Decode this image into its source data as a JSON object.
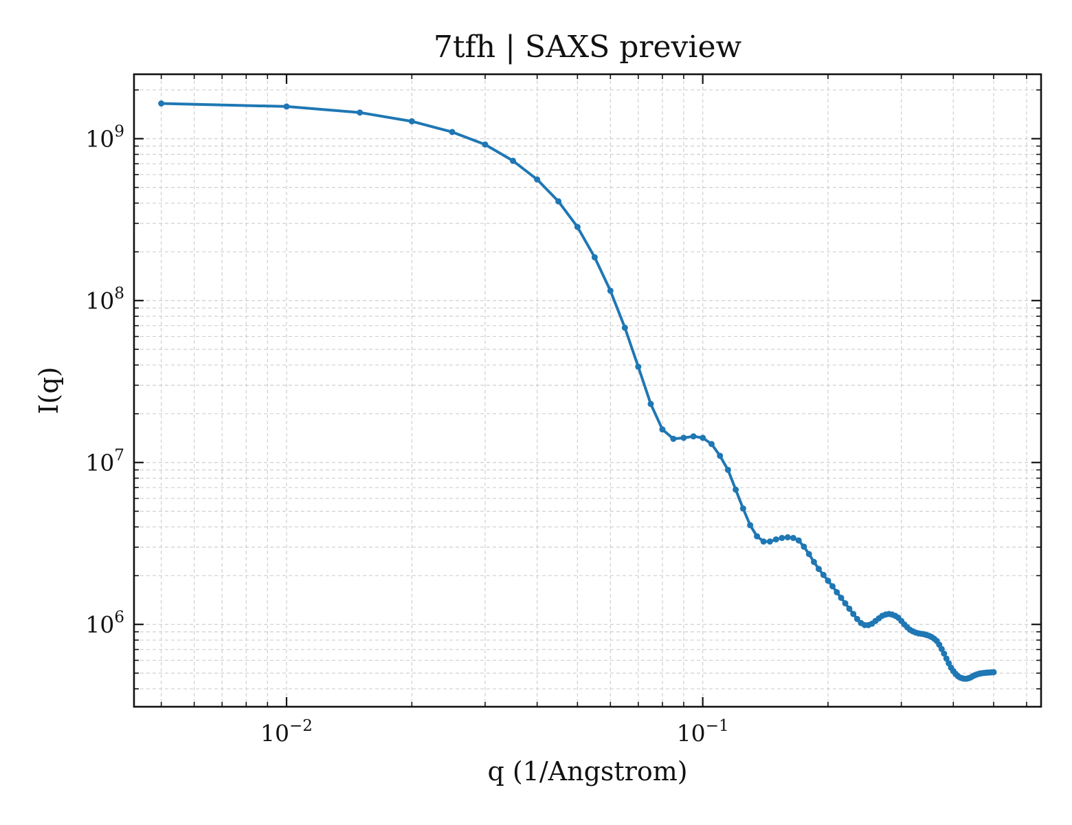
{
  "chart_data": {
    "type": "line",
    "title": "7tfh | SAXS preview",
    "xlabel": "q (1/Angstrom)",
    "ylabel": "I(q)",
    "xscale": "log",
    "yscale": "log",
    "xlim": [
      0.0043,
      0.65
    ],
    "ylim": [
      310000,
      2500000000
    ],
    "grid": true,
    "legend": "none",
    "colors": {
      "series": "#1f77b4",
      "grid": "#cfcfcf",
      "axes": "#111111"
    },
    "x_major_ticks": [
      {
        "value": 0.01,
        "base": "10",
        "exp": "−2"
      },
      {
        "value": 0.1,
        "base": "10",
        "exp": "−1"
      }
    ],
    "y_major_ticks": [
      {
        "value": 1000000,
        "base": "10",
        "exp": "6"
      },
      {
        "value": 10000000,
        "base": "10",
        "exp": "7"
      },
      {
        "value": 100000000,
        "base": "10",
        "exp": "8"
      },
      {
        "value": 1000000000,
        "base": "10",
        "exp": "9"
      }
    ],
    "series": [
      {
        "x": [
          0.005,
          0.01,
          0.015,
          0.02,
          0.025,
          0.03,
          0.035,
          0.04,
          0.045,
          0.05,
          0.055,
          0.06,
          0.065,
          0.07,
          0.075,
          0.08,
          0.085,
          0.09,
          0.095,
          0.1,
          0.105,
          0.11,
          0.115,
          0.12,
          0.125,
          0.13,
          0.135,
          0.14,
          0.145,
          0.15,
          0.155,
          0.16,
          0.165,
          0.17,
          0.175,
          0.18,
          0.185,
          0.19,
          0.195,
          0.2,
          0.205,
          0.21,
          0.215,
          0.22,
          0.225,
          0.23,
          0.235,
          0.24,
          0.245,
          0.25,
          0.255,
          0.26,
          0.265,
          0.27,
          0.275,
          0.28,
          0.285,
          0.29,
          0.295,
          0.3,
          0.305,
          0.31,
          0.315,
          0.32,
          0.325,
          0.33,
          0.335,
          0.34,
          0.345,
          0.35,
          0.355,
          0.36,
          0.365,
          0.37,
          0.375,
          0.38,
          0.385,
          0.39,
          0.395,
          0.4,
          0.405,
          0.41,
          0.415,
          0.42,
          0.425,
          0.43,
          0.435,
          0.44,
          0.445,
          0.45,
          0.455,
          0.46,
          0.465,
          0.47,
          0.475,
          0.48,
          0.485,
          0.49,
          0.495,
          0.5
        ],
        "y": [
          1650000000,
          1580000000,
          1450000000,
          1280000000,
          1100000000,
          920000000,
          730000000,
          560000000,
          410000000,
          285000000,
          185000000,
          115000000,
          68000000,
          39000000,
          23000000,
          16000000,
          14000000,
          14200000,
          14500000,
          14200000,
          13000000,
          11000000,
          9000000,
          6800000,
          5200000,
          4100000,
          3500000,
          3250000,
          3250000,
          3350000,
          3420000,
          3450000,
          3420000,
          3300000,
          3020000,
          2720000,
          2430000,
          2200000,
          2020000,
          1860000,
          1720000,
          1580000,
          1460000,
          1350000,
          1250000,
          1160000,
          1080000,
          1020000,
          990000,
          990000,
          1010000,
          1050000,
          1090000,
          1130000,
          1150000,
          1160000,
          1150000,
          1130000,
          1100000,
          1050000,
          1000000,
          960000,
          925000,
          905000,
          890000,
          880000,
          875000,
          870000,
          860000,
          850000,
          835000,
          815000,
          790000,
          750000,
          705000,
          660000,
          615000,
          575000,
          540000,
          515000,
          495000,
          480000,
          470000,
          465000,
          462000,
          462000,
          465000,
          470000,
          478000,
          485000,
          490000,
          495000,
          498000,
          500000,
          502000,
          503000,
          504000,
          505000,
          506000,
          507000
        ]
      }
    ]
  }
}
